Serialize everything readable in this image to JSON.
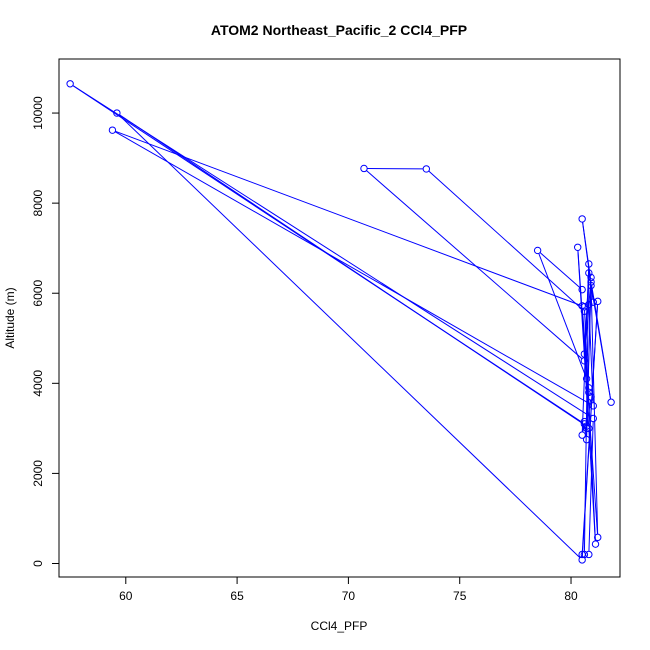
{
  "chart_data": {
    "type": "line",
    "title": "ATOM2 Northeast_Pacific_2 CCl4_PFP",
    "xlabel": "CCl4_PFP",
    "ylabel": "Altitude (m)",
    "xlim": [
      57,
      82.2
    ],
    "ylim": [
      -300,
      11200
    ],
    "x_ticks": [
      60,
      65,
      70,
      75,
      80
    ],
    "y_ticks": [
      0,
      2000,
      4000,
      6000,
      8000,
      10000
    ],
    "x_tick_labels": [
      "60",
      "65",
      "70",
      "75",
      "80"
    ],
    "y_tick_labels": [
      "0",
      "2000",
      "4000",
      "6000",
      "8000",
      "10000"
    ],
    "markers": "open-circle",
    "grid": false,
    "color": "#0000ff",
    "series": [
      {
        "x": [
          80.6,
          80.8,
          80.5,
          80.6,
          80.7,
          80.9,
          80.8,
          80.6,
          80.8,
          81.8,
          80.9,
          80.5,
          81.0,
          80.8,
          81.0,
          59.4,
          80.6,
          81.1,
          80.8,
          80.3,
          81.2,
          80.9,
          80.7,
          59.6,
          80.5,
          81.2,
          80.5,
          80.8,
          81.0,
          57.5,
          80.6,
          80.7,
          80.9,
          80.6,
          70.7,
          73.5,
          80.6,
          80.5,
          80.8,
          80.7,
          78.5,
          80.5
        ],
        "y": [
          200,
          6650,
          2850,
          3150,
          3000,
          3700,
          3900,
          4650,
          6450,
          3580,
          6250,
          7650,
          5800,
          5750,
          3500,
          9620,
          5700,
          430,
          3000,
          7020,
          580,
          6170,
          3050,
          10000,
          80,
          5820,
          200,
          200,
          3220,
          10650,
          3100,
          2750,
          6350,
          4500,
          8770,
          8760,
          5600,
          5720,
          3800,
          4100,
          6950,
          6080
        ]
      }
    ]
  }
}
